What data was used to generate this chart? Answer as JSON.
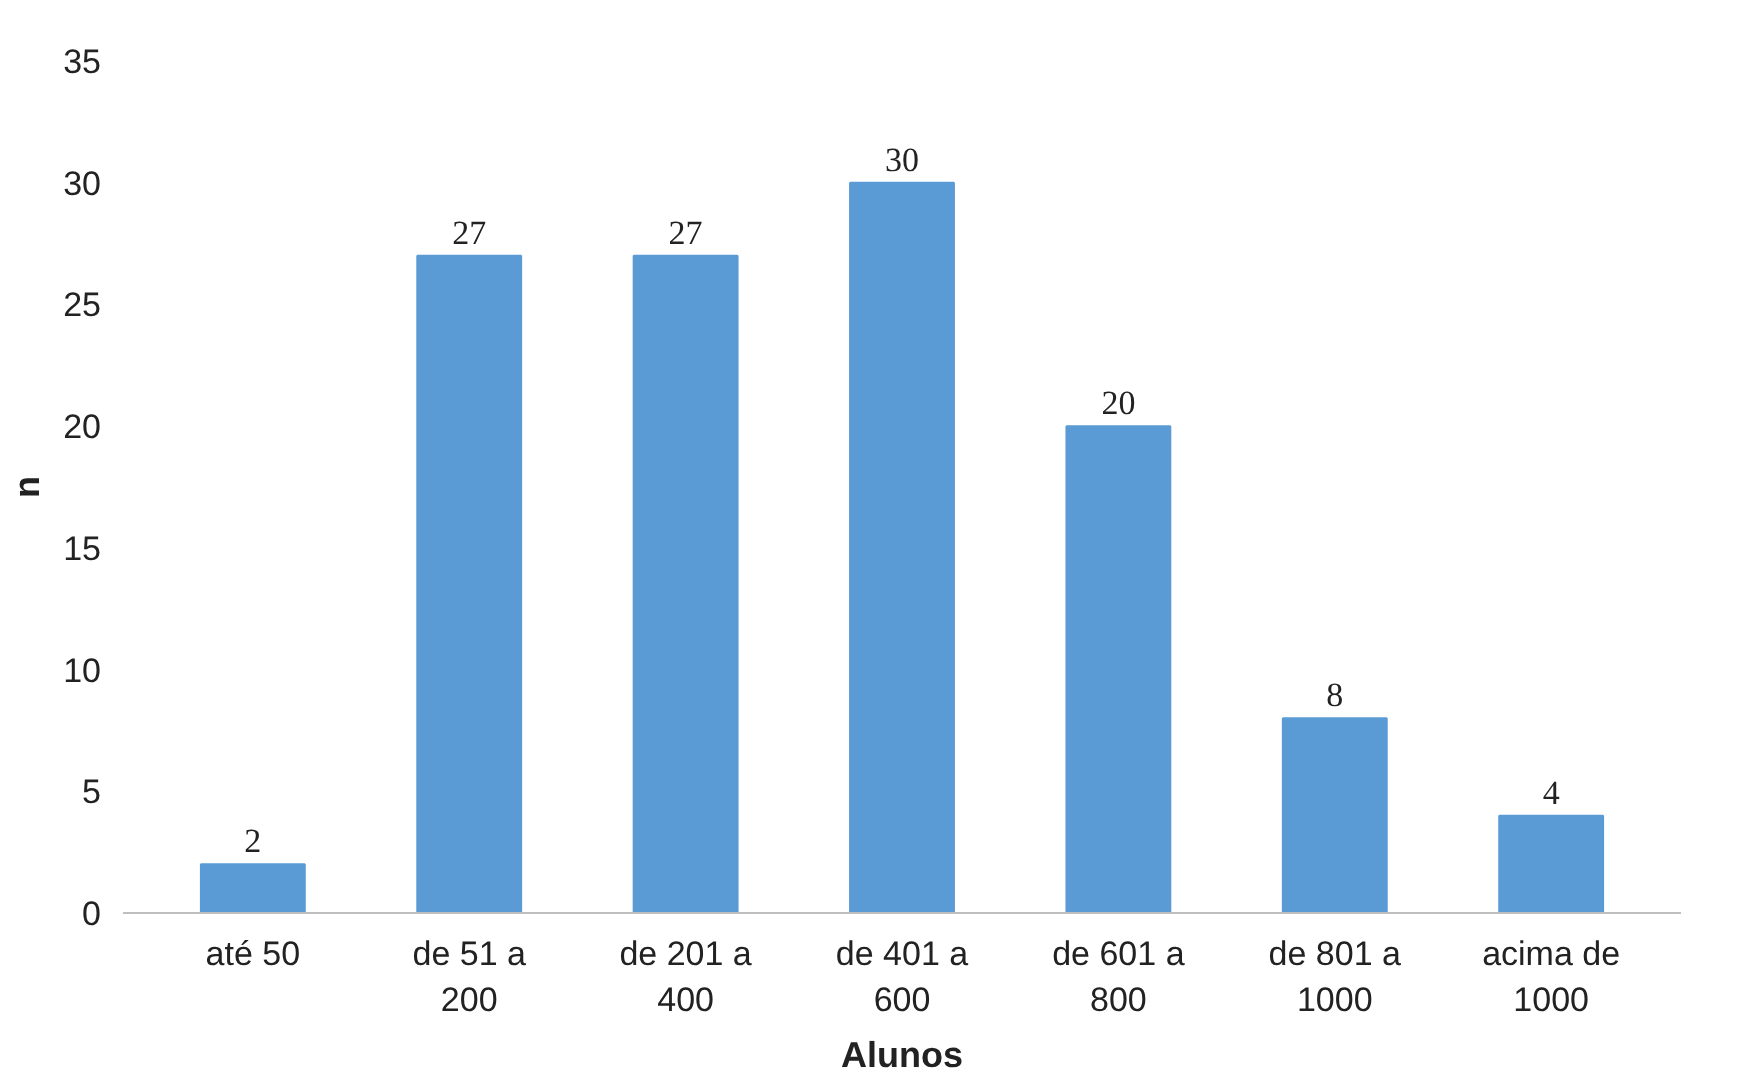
{
  "chart_data": {
    "type": "bar",
    "xlabel": "Alunos",
    "ylabel": "n",
    "categories": [
      "até 50",
      "de 51 a 200",
      "de 201 a 400",
      "de 401 a 600",
      "de 601 a 800",
      "de 801 a 1000",
      "acima de 1000"
    ],
    "values": [
      2,
      27,
      27,
      30,
      20,
      8,
      4
    ],
    "color": "#5b9bd5",
    "ylim": [
      0,
      35
    ],
    "yticks": [
      0,
      5,
      10,
      15,
      20,
      25,
      30,
      35
    ],
    "grid": false,
    "data_labels": true
  }
}
